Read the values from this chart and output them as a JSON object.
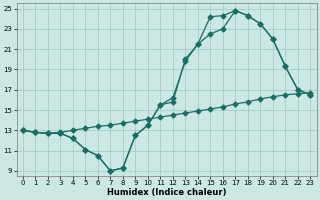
{
  "title": "",
  "xlabel": "Humidex (Indice chaleur)",
  "background_color": "#cce8e4",
  "grid_color": "#aacfcb",
  "line_color": "#1a6e63",
  "xlim": [
    -0.5,
    23.5
  ],
  "ylim": [
    8.5,
    25.5
  ],
  "xticks": [
    0,
    1,
    2,
    3,
    4,
    5,
    6,
    7,
    8,
    9,
    10,
    11,
    12,
    13,
    14,
    15,
    16,
    17,
    18,
    19,
    20,
    21,
    22,
    23
  ],
  "yticks": [
    9,
    11,
    13,
    15,
    17,
    19,
    21,
    23,
    25
  ],
  "line1_x": [
    0,
    1,
    2,
    3,
    4,
    5,
    6,
    7,
    8,
    9,
    10,
    11,
    12,
    13,
    14,
    15,
    16,
    17,
    18,
    19,
    20,
    21,
    22,
    23
  ],
  "line1_y": [
    13.0,
    12.8,
    12.7,
    12.7,
    12.2,
    11.1,
    10.5,
    9.0,
    9.3,
    12.5,
    13.5,
    15.5,
    16.2,
    19.8,
    21.5,
    24.2,
    24.3,
    24.8,
    24.3,
    23.5,
    22.0,
    19.3,
    17.0,
    16.5
  ],
  "line2_x": [
    0,
    1,
    2,
    3,
    4,
    5,
    6,
    7,
    8,
    9,
    10,
    11,
    12,
    13,
    14,
    15,
    16,
    17,
    18,
    19,
    20,
    21,
    22,
    23
  ],
  "line2_y": [
    13.0,
    12.8,
    12.7,
    12.7,
    12.2,
    11.1,
    10.5,
    9.0,
    9.3,
    12.5,
    13.5,
    15.5,
    15.8,
    20.0,
    21.5,
    22.5,
    23.0,
    24.8,
    24.3,
    23.5,
    22.0,
    19.3,
    17.0,
    16.5
  ],
  "line3_x": [
    0,
    1,
    2,
    3,
    4,
    5,
    6,
    7,
    8,
    9,
    10,
    11,
    12,
    13,
    14,
    15,
    16,
    17,
    18,
    19,
    20,
    21,
    22,
    23
  ],
  "line3_y": [
    13.0,
    12.8,
    12.7,
    12.8,
    13.0,
    13.2,
    13.4,
    13.5,
    13.7,
    13.9,
    14.1,
    14.3,
    14.5,
    14.7,
    14.9,
    15.1,
    15.3,
    15.6,
    15.8,
    16.1,
    16.3,
    16.5,
    16.6,
    16.7
  ]
}
